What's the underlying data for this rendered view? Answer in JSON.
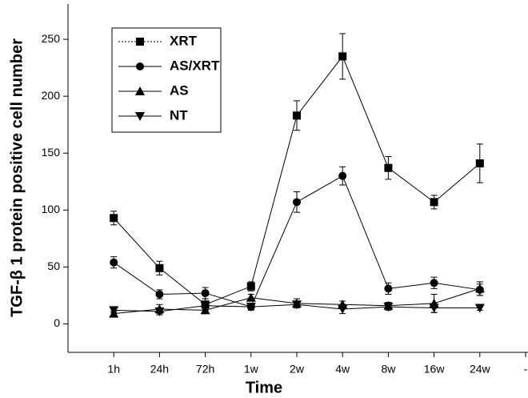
{
  "chart_data": {
    "type": "line",
    "x_label": "Time",
    "y_label": "TGF-β 1 protein positive cell number",
    "categories": [
      "1h",
      "24h",
      "72h",
      "1w",
      "2w",
      "4w",
      "8w",
      "16w",
      "24w",
      "-"
    ],
    "ylim": [
      -25,
      281
    ],
    "yticks": [
      0,
      50,
      100,
      150,
      200,
      250
    ],
    "legend": "top-left",
    "series": [
      {
        "name": "XRT",
        "color": "#000000",
        "marker": "square",
        "dash": "dotted",
        "values": [
          93,
          49,
          17,
          33,
          183,
          235,
          137,
          107,
          141,
          null
        ],
        "errors": [
          6,
          6,
          5,
          4,
          13,
          20,
          10,
          6,
          17,
          null
        ]
      },
      {
        "name": "AS/XRT",
        "color": "#000000",
        "marker": "circle",
        "values": [
          54,
          26,
          27,
          15,
          107,
          130,
          31,
          36,
          30,
          null
        ],
        "errors": [
          5,
          4,
          5,
          3,
          9,
          8,
          5,
          5,
          5,
          null
        ]
      },
      {
        "name": "AS",
        "color": "#000000",
        "marker": "triangle-up",
        "values": [
          9,
          13,
          12,
          23,
          18,
          17,
          16,
          18,
          31,
          null
        ],
        "errors": [
          2,
          4,
          3,
          3,
          4,
          3,
          3,
          8,
          6,
          null
        ]
      },
      {
        "name": "NT",
        "color": "#000000",
        "marker": "triangle-down",
        "values": [
          12,
          11,
          16,
          15,
          17,
          13,
          15,
          14,
          14,
          null
        ],
        "errors": [
          2,
          3,
          3,
          2,
          3,
          4,
          3,
          4,
          2,
          null
        ]
      }
    ]
  }
}
